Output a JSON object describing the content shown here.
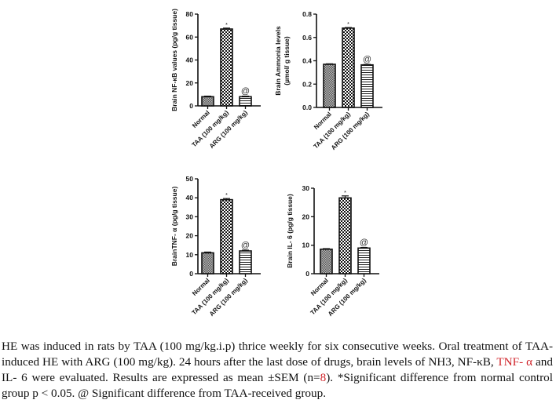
{
  "chart_data": [
    {
      "type": "bar",
      "id": "nfkb",
      "title": "",
      "categories": [
        "Normal",
        "TAA (100 mg/kg)",
        "ARG (100 mg/kg)"
      ],
      "values": [
        8,
        67,
        8
      ],
      "errors": [
        0.5,
        0.8,
        0.5
      ],
      "annotations": [
        "",
        "*",
        "@"
      ],
      "ylabel": "Brain NF-κB values (pg/g tissue)",
      "xlabel": "",
      "ylim": [
        0,
        80
      ],
      "yticks": [
        "0",
        "20",
        "40",
        "60",
        "80"
      ],
      "grid": false
    },
    {
      "type": "bar",
      "id": "ammonia",
      "title": "",
      "categories": [
        "Normal",
        "TAA (100 mg/kg)",
        "ARG (100 mg/kg)"
      ],
      "values": [
        0.37,
        0.68,
        0.365
      ],
      "errors": [
        0.004,
        0.005,
        0.004
      ],
      "annotations": [
        "",
        "*",
        "@"
      ],
      "ylabel": "Brain Ammonia levels",
      "ylabel2": "(µmol/ g tissue)",
      "xlabel": "",
      "ylim": [
        0,
        0.8
      ],
      "yticks": [
        "0.0",
        "0.2",
        "0.4",
        "0.6",
        "0.8"
      ],
      "grid": false
    },
    {
      "type": "bar",
      "id": "tnf",
      "title": "",
      "categories": [
        "Normal",
        "TAA (100 mg/kg)",
        "ARG (100 mg/kg)"
      ],
      "values": [
        11,
        39,
        12
      ],
      "errors": [
        0.4,
        0.6,
        0.4
      ],
      "annotations": [
        "",
        "*",
        "@"
      ],
      "ylabel": "BrainTNF- α  (pg/g tissue)",
      "xlabel": "",
      "ylim": [
        0,
        50
      ],
      "yticks": [
        "0",
        "10",
        "20",
        "30",
        "40",
        "50"
      ],
      "grid": false
    },
    {
      "type": "bar",
      "id": "il6",
      "title": "",
      "categories": [
        "Normal",
        "TAA (100 mg/kg)",
        "ARG (100 mg/kg)"
      ],
      "values": [
        8.6,
        26.6,
        9
      ],
      "errors": [
        0.2,
        0.7,
        0.2
      ],
      "annotations": [
        "",
        "*",
        "@"
      ],
      "ylabel": "Brain IL- 6 (pg/g tissue)",
      "xlabel": "",
      "ylim": [
        0,
        30
      ],
      "yticks": [
        "0",
        "10",
        "20",
        "30"
      ],
      "grid": false
    }
  ],
  "caption": {
    "part1": "HE was induced in rats by TAA (100 mg/kg.i.p) thrice weekly for six consecutive weeks. Oral treatment of TAA- induced HE with ARG (100 mg/kg). 24 hours after the last dose of drugs, brain levels of NH3, NF-κB, ",
    "tnf": "TNF- α",
    "part2": " and IL- 6 were evaluated. Results are expressed as mean ±SEM (n=",
    "n": "8",
    "part3": "). *Significant difference from normal control group p < 0.05. @ Significant difference from TAA-received group."
  },
  "colors": {
    "axis": "#111111",
    "highlight": "#d0252b"
  }
}
